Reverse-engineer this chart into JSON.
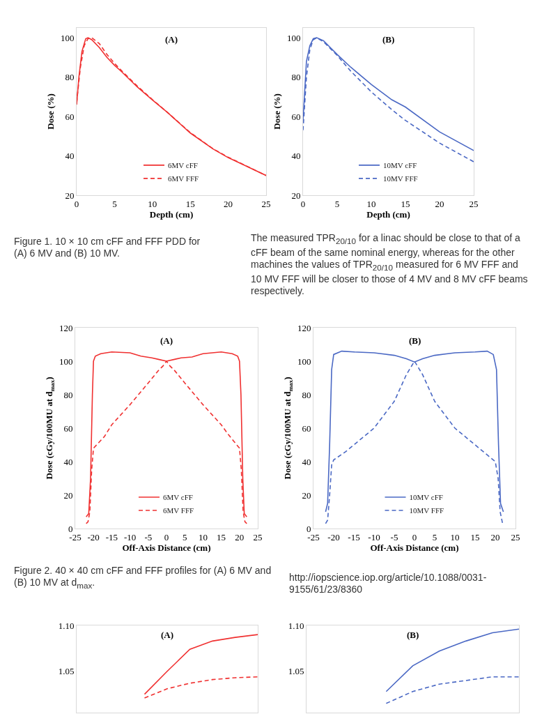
{
  "chart_data": [
    {
      "type": "line",
      "title": "(A)",
      "xlabel": "Depth (cm)",
      "ylabel": "Dose (%)",
      "xlim": [
        0,
        25
      ],
      "xticks": [
        0,
        5,
        10,
        15,
        20,
        25
      ],
      "ylim": [
        20,
        105
      ],
      "yticks": [
        20,
        40,
        60,
        80,
        100
      ],
      "legend": "bottom",
      "grid": false,
      "series": [
        {
          "name": "6MV cFF",
          "color": "#f03030",
          "line_style": "solid",
          "x": [
            0,
            0.3,
            0.7,
            1.2,
            1.5,
            2,
            3,
            4,
            5,
            6,
            8,
            10,
            12,
            15,
            18,
            20,
            22,
            25
          ],
          "values": [
            66,
            80,
            93,
            99.5,
            100,
            99,
            95,
            90,
            86,
            82.5,
            75,
            68.4,
            62,
            51.6,
            43.5,
            39.1,
            35.5,
            30
          ]
        },
        {
          "name": "6MV FFF",
          "color": "#f03030",
          "line_style": "dashed",
          "x": [
            0,
            0.5,
            1,
            1.5,
            2,
            3,
            4,
            5,
            6,
            8,
            10,
            12,
            15,
            18,
            20,
            22,
            25
          ],
          "values": [
            67,
            85,
            96,
            99.5,
            100,
            97,
            91.5,
            87,
            83,
            75.5,
            68.6,
            62,
            51.8,
            43.6,
            39.3,
            35.6,
            30
          ]
        }
      ],
      "annotations": [
        "Figure 1. 10 × 10 cm cFF and FFF PDD for (A) 6 MV and (B) 10 MV."
      ]
    },
    {
      "type": "line",
      "title": "(B)",
      "xlabel": "Depth (cm)",
      "ylabel": "Dose (%)",
      "xlim": [
        0,
        25
      ],
      "xticks": [
        0,
        5,
        10,
        15,
        20,
        25
      ],
      "ylim": [
        20,
        105
      ],
      "yticks": [
        20,
        40,
        60,
        80,
        100
      ],
      "legend": "bottom",
      "grid": false,
      "series": [
        {
          "name": "10MV cFF",
          "color": "#4a68c4",
          "line_style": "solid",
          "x": [
            0,
            0.5,
            1,
            1.5,
            2,
            3,
            4,
            5,
            7,
            10,
            13,
            15,
            20,
            25
          ],
          "values": [
            58,
            88,
            96,
            99.5,
            100,
            98.5,
            95,
            91.5,
            85,
            76.3,
            68.5,
            64.8,
            52.2,
            42.7
          ]
        },
        {
          "name": "10MV FFF",
          "color": "#4a68c4",
          "line_style": "dashed",
          "x": [
            0,
            0.5,
            1,
            1.5,
            2,
            3,
            4,
            5,
            7,
            10,
            13,
            15,
            20,
            25
          ],
          "values": [
            53,
            80,
            94,
            99,
            100,
            98,
            94.5,
            91,
            83,
            72.5,
            63.5,
            58,
            46.5,
            37
          ]
        }
      ],
      "annotations": [
        "The measured TPR$_{20/10}$ for a linac should be close to that of a cFF beam of the same nominal energy, whereas for the other machines the values of TPR$_{20/10}$ measured for 6 MV FFF and 10 MV FFF will be closer to those of 4 MV and 8 MV cFF beams respectively."
      ]
    },
    {
      "type": "line",
      "title": "(A)",
      "xlabel": "Off-Axis Distance (cm)",
      "ylabel": "Dose (cGy/100MU at d$_{max}$)",
      "xlim": [
        -25,
        25
      ],
      "xticks": [
        -25,
        -20,
        -15,
        -10,
        -5,
        0,
        5,
        10,
        15,
        20,
        25
      ],
      "ylim": [
        0,
        120
      ],
      "yticks": [
        0,
        20,
        40,
        60,
        80,
        100,
        120
      ],
      "legend": "bottom",
      "grid": false,
      "series": [
        {
          "name": "6MV cFF",
          "color": "#f03030",
          "line_style": "solid",
          "x": [
            -22,
            -21.3,
            -20.8,
            -20.3,
            -20,
            -19.5,
            -18,
            -15,
            -10,
            -7,
            -4,
            -2,
            0,
            2,
            4,
            7,
            10,
            15,
            18,
            19.5,
            20,
            20.4,
            20.9,
            21.3,
            22
          ],
          "values": [
            7,
            9,
            30,
            80,
            100,
            103,
            104.5,
            105.5,
            105,
            103,
            102,
            101,
            100,
            101,
            102,
            102.5,
            104.5,
            105.5,
            104.5,
            103,
            100,
            80,
            30,
            9,
            7
          ]
        },
        {
          "name": "6MV FFF",
          "color": "#f03030",
          "line_style": "dashed",
          "x": [
            -22,
            -21.5,
            -21,
            -20.5,
            -20,
            -17,
            -15,
            -10,
            -5,
            -2,
            -1,
            0,
            1,
            2,
            5,
            10,
            15,
            17,
            20,
            20.5,
            21,
            21.5,
            22
          ],
          "values": [
            3,
            4,
            10,
            35,
            48,
            55,
            62,
            74,
            87,
            95,
            97,
            100,
            97,
            95,
            87,
            74,
            62,
            56,
            48,
            35,
            10,
            4,
            3
          ]
        }
      ],
      "annotations": [
        "Figure 2. 40 × 40 cm cFF and FFF profiles for (A) 6 MV and (B) 10 MV at d$_{max}$."
      ]
    },
    {
      "type": "line",
      "title": "(B)",
      "xlabel": "Off-Axis Distance (cm)",
      "ylabel": "Dose (cGy/100MU at d$_{max}$)",
      "xlim": [
        -25,
        25
      ],
      "xticks": [
        -25,
        -20,
        -15,
        -10,
        -5,
        0,
        5,
        10,
        15,
        20,
        25
      ],
      "ylim": [
        0,
        120
      ],
      "yticks": [
        0,
        20,
        40,
        60,
        80,
        100,
        120
      ],
      "legend": "bottom",
      "grid": false,
      "series": [
        {
          "name": "10MV cFF",
          "color": "#4a68c4",
          "line_style": "solid",
          "x": [
            -22,
            -21.5,
            -21,
            -20.5,
            -20,
            -18,
            -15,
            -10,
            -5,
            -2,
            0,
            2,
            5,
            10,
            15,
            18,
            19.5,
            20.3,
            20.8,
            21.3,
            22
          ],
          "values": [
            10,
            15,
            50,
            95,
            104,
            106,
            105.5,
            105,
            103.5,
            101.5,
            99.5,
            101.5,
            103.5,
            105,
            105.5,
            106,
            104,
            95,
            50,
            15,
            10
          ]
        },
        {
          "name": "10MV FFF",
          "color": "#4a68c4",
          "line_style": "dashed",
          "x": [
            -22,
            -21.5,
            -21,
            -20.5,
            -20,
            -17,
            -15,
            -10,
            -5,
            -2,
            0,
            2,
            5,
            10,
            15,
            18,
            20,
            20.7,
            21.2,
            21.8
          ],
          "values": [
            3,
            5,
            20,
            38,
            41,
            46,
            50,
            60,
            76,
            92,
            100,
            92,
            76,
            60,
            50,
            44,
            40,
            30,
            10,
            3
          ]
        }
      ],
      "annotations": [
        "http://iopscience.iop.org/article/10.1088/0031-9155/61/23/8360"
      ]
    },
    {
      "type": "line",
      "title": "(A)",
      "categories": [
        null,
        null,
        null,
        null,
        null,
        null,
        null,
        null,
        null
      ],
      "ylim": [
        1.005,
        1.1
      ],
      "yticks": [
        1.05,
        {
          "value": 1.1,
          "label": "1.10"
        }
      ],
      "tick_labels": "y",
      "grid": false,
      "legend": false,
      "series": [
        {
          "color": "#f03030",
          "line_style": "solid",
          "values": [
            null,
            null,
            null,
            1.025,
            1.05,
            1.074,
            1.083,
            1.087,
            1.09
          ]
        },
        {
          "color": "#f03030",
          "line_style": "dashed",
          "values": [
            null,
            null,
            null,
            1.021,
            1.031,
            1.037,
            1.041,
            1.043,
            1.044
          ]
        }
      ]
    },
    {
      "type": "line",
      "title": "(B)",
      "categories": [
        null,
        null,
        null,
        null,
        null,
        null,
        null,
        null,
        null
      ],
      "ylim": [
        1.005,
        1.1
      ],
      "yticks": [
        1.05,
        {
          "value": 1.1,
          "label": "1.10"
        }
      ],
      "tick_labels": "y",
      "grid": false,
      "legend": false,
      "series": [
        {
          "color": "#4a68c4",
          "line_style": "solid",
          "values": [
            null,
            null,
            null,
            1.028,
            1.056,
            1.072,
            1.083,
            1.092,
            1.096
          ]
        },
        {
          "color": "#4a68c4",
          "line_style": "dashed",
          "values": [
            null,
            null,
            null,
            1.015,
            1.028,
            1.036,
            1.04,
            1.044,
            1.044
          ]
        }
      ]
    }
  ]
}
